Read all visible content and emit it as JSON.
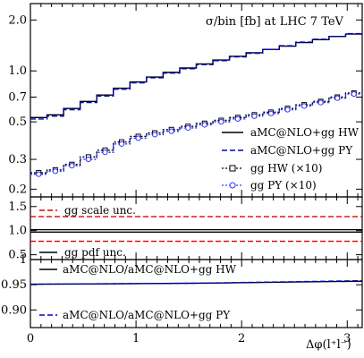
{
  "chart_data": [
    {
      "type": "line",
      "panel": "main",
      "title": "σ/bin [fb]  at LHC 7 TeV",
      "xlabel": "",
      "ylabel": "",
      "xlim": [
        0,
        3.14159
      ],
      "ylim": [
        0.18,
        2.5
      ],
      "yscale": "log",
      "yticks": [
        0.2,
        0.3,
        0.5,
        0.7,
        1.0,
        2.0
      ],
      "ytick_labels": [
        "0.2",
        "0.3",
        "0.5",
        "0.7",
        "1.0",
        "2.0"
      ],
      "legend_position": "bottom-right",
      "x_edges": [
        0,
        0.1571,
        0.3142,
        0.4712,
        0.6283,
        0.7854,
        0.9425,
        1.0996,
        1.2566,
        1.4137,
        1.5708,
        1.7279,
        1.885,
        2.042,
        2.1991,
        2.3562,
        2.5133,
        2.6704,
        2.8274,
        2.9845,
        3.1416
      ],
      "series": [
        {
          "name": "aMC@NLO+gg HW",
          "color": "#000000",
          "style": "solid",
          "values": [
            0.53,
            0.55,
            0.6,
            0.66,
            0.72,
            0.79,
            0.86,
            0.92,
            0.98,
            1.04,
            1.1,
            1.16,
            1.22,
            1.28,
            1.34,
            1.4,
            1.47,
            1.53,
            1.6,
            1.65
          ]
        },
        {
          "name": "aMC@NLO+gg PY",
          "color": "#0000cc",
          "style": "dashed",
          "values": [
            0.52,
            0.54,
            0.59,
            0.65,
            0.71,
            0.78,
            0.85,
            0.91,
            0.97,
            1.03,
            1.09,
            1.15,
            1.21,
            1.27,
            1.34,
            1.41,
            1.48,
            1.54,
            1.6,
            1.66
          ]
        },
        {
          "name": "gg HW (×10)",
          "color": "#000000",
          "style": "dotted-square",
          "values": [
            0.25,
            0.26,
            0.28,
            0.31,
            0.34,
            0.38,
            0.41,
            0.43,
            0.45,
            0.47,
            0.49,
            0.51,
            0.53,
            0.55,
            0.57,
            0.6,
            0.63,
            0.66,
            0.7,
            0.74
          ]
        },
        {
          "name": "gg PY (×10)",
          "color": "#3333ff",
          "style": "dotted-circle",
          "values": [
            0.245,
            0.255,
            0.275,
            0.3,
            0.33,
            0.37,
            0.4,
            0.42,
            0.44,
            0.46,
            0.48,
            0.5,
            0.52,
            0.54,
            0.56,
            0.59,
            0.62,
            0.65,
            0.69,
            0.73
          ]
        }
      ]
    },
    {
      "type": "line",
      "panel": "ratio-uncertainty",
      "xlim": [
        0,
        3.14159
      ],
      "ylim": [
        0.4,
        1.7
      ],
      "yticks": [
        0.5,
        1.0,
        1.5
      ],
      "ytick_labels": [
        "0.5",
        "1.0",
        "1.5"
      ],
      "series": [
        {
          "name": "gg scale unc.",
          "color": "#dd0000",
          "style": "dashed",
          "x": [
            0,
            3.14159
          ],
          "values_upper": [
            1.29,
            1.29
          ],
          "values_lower": [
            0.78,
            0.78
          ]
        },
        {
          "name": "gg pdf unc.",
          "color": "#000000",
          "style": "solid",
          "x": [
            0,
            3.14159
          ],
          "values_upper": [
            1.02,
            1.02
          ],
          "values_lower": [
            0.97,
            0.97
          ]
        }
      ]
    },
    {
      "type": "line",
      "panel": "ratio-total",
      "xlabel": "Δφ(l⁺l⁻)",
      "xlim": [
        0,
        3.14159
      ],
      "ylim": [
        0.865,
        1.0
      ],
      "yticks": [
        0.9,
        0.95,
        1.0
      ],
      "ytick_labels": [
        "0.90",
        "0.95",
        "1"
      ],
      "xticks": [
        0,
        1,
        2,
        3
      ],
      "xtick_labels": [
        "0",
        "1",
        "2",
        "3"
      ],
      "series": [
        {
          "name": "aMC@NLO/aMC@NLO+gg HW",
          "color": "#000000",
          "style": "solid",
          "x": [
            0,
            1.57,
            3.14159
          ],
          "values": [
            0.951,
            0.953,
            0.957
          ]
        },
        {
          "name": "aMC@NLO/aMC@NLO+gg PY",
          "color": "#0000cc",
          "style": "dashed",
          "x": [
            0,
            1.57,
            3.14159
          ],
          "values": [
            0.951,
            0.953,
            0.958
          ]
        }
      ]
    }
  ]
}
